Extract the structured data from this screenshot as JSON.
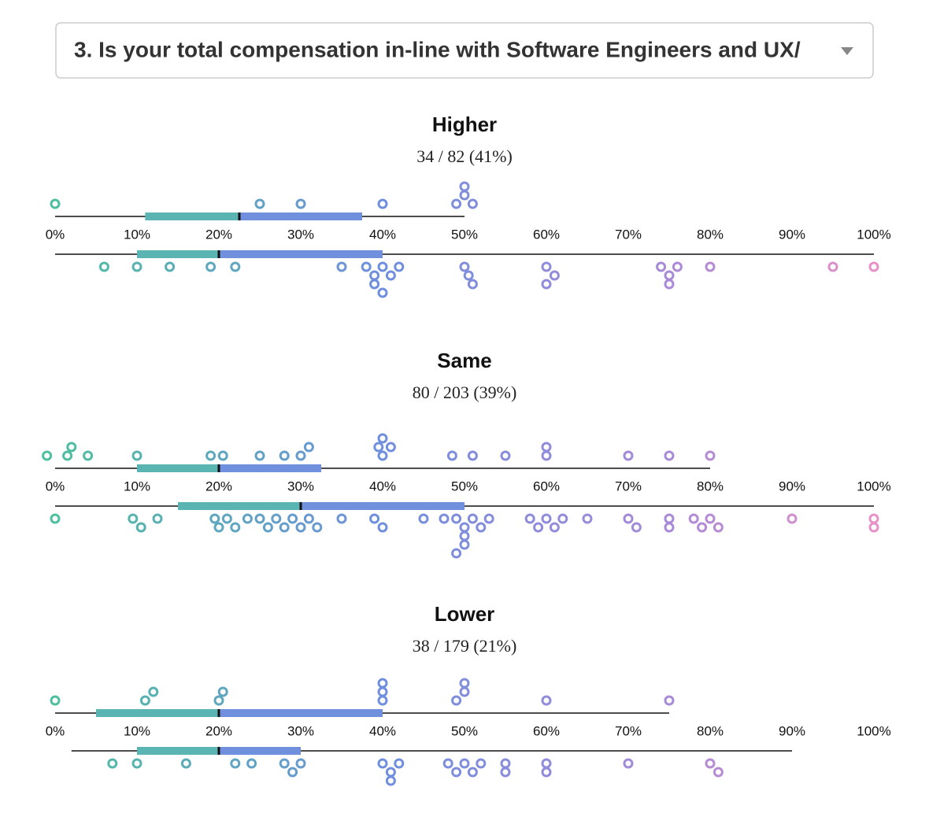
{
  "header": {
    "question": "3. Is your total compensation in-line with Software Engineers and UX/"
  },
  "chart_data": [
    {
      "type": "beeswarm",
      "title": "Higher",
      "subtitle": "34 / 82 (41%)",
      "xlim": [
        0,
        100
      ],
      "xticks": [
        {
          "value": 0,
          "label": "0%"
        },
        {
          "value": 10,
          "label": "10%"
        },
        {
          "value": 20,
          "label": "20%"
        },
        {
          "value": 30,
          "label": "30%"
        },
        {
          "value": 40,
          "label": "40%"
        },
        {
          "value": 50,
          "label": "50%"
        },
        {
          "value": 60,
          "label": "60%"
        },
        {
          "value": 70,
          "label": "70%"
        },
        {
          "value": 80,
          "label": "80%"
        },
        {
          "value": 90,
          "label": "90%"
        },
        {
          "value": 100,
          "label": "100%"
        }
      ],
      "rows": [
        {
          "whisker": [
            0,
            50
          ],
          "q1": 11,
          "median": 22.5,
          "q3": 37.5,
          "dots": [
            0,
            25,
            30,
            40,
            49,
            50,
            51,
            50
          ]
        },
        {
          "whisker": [
            0,
            100
          ],
          "q1": 10,
          "median": 20,
          "q3": 40,
          "dots": [
            6,
            10,
            14,
            19,
            22,
            35,
            38,
            39,
            40,
            41,
            42,
            39,
            40,
            50,
            50.5,
            51,
            60,
            61,
            60,
            74,
            75,
            76,
            75,
            80,
            95,
            100
          ]
        }
      ]
    },
    {
      "type": "beeswarm",
      "title": "Same",
      "subtitle": "80 / 203 (39%)",
      "xlim": [
        0,
        100
      ],
      "xticks": [
        {
          "value": 0,
          "label": "0%"
        },
        {
          "value": 10,
          "label": "10%"
        },
        {
          "value": 20,
          "label": "20%"
        },
        {
          "value": 30,
          "label": "30%"
        },
        {
          "value": 40,
          "label": "40%"
        },
        {
          "value": 50,
          "label": "50%"
        },
        {
          "value": 60,
          "label": "60%"
        },
        {
          "value": 70,
          "label": "70%"
        },
        {
          "value": 80,
          "label": "80%"
        },
        {
          "value": 90,
          "label": "90%"
        },
        {
          "value": 100,
          "label": "100%"
        }
      ],
      "rows": [
        {
          "whisker": [
            0,
            80
          ],
          "q1": 10,
          "median": 20,
          "q3": 32.5,
          "dots": [
            -1,
            1.5,
            2,
            4,
            10,
            19,
            20.5,
            25,
            28,
            30,
            31,
            40,
            39.5,
            41,
            40,
            48.5,
            51,
            55,
            60,
            60,
            70,
            75,
            80
          ]
        },
        {
          "whisker": [
            0,
            100
          ],
          "q1": 15,
          "median": 30,
          "q3": 50,
          "dots": [
            0,
            9.5,
            10.5,
            12.5,
            19.5,
            20,
            21,
            22,
            23.5,
            25,
            26,
            27,
            28,
            29,
            30,
            31,
            32,
            35,
            39,
            40,
            45,
            47.5,
            49,
            50,
            51,
            52,
            53,
            50,
            50,
            49,
            58,
            59,
            60,
            61,
            62,
            65,
            70,
            71,
            75,
            75,
            78,
            79,
            80,
            81,
            90,
            100,
            100
          ]
        }
      ]
    },
    {
      "type": "beeswarm",
      "title": "Lower",
      "subtitle": "38 / 179 (21%)",
      "xlim": [
        0,
        100
      ],
      "xticks": [
        {
          "value": 0,
          "label": "0%"
        },
        {
          "value": 10,
          "label": "10%"
        },
        {
          "value": 20,
          "label": "20%"
        },
        {
          "value": 30,
          "label": "30%"
        },
        {
          "value": 40,
          "label": "40%"
        },
        {
          "value": 50,
          "label": "50%"
        },
        {
          "value": 60,
          "label": "60%"
        },
        {
          "value": 70,
          "label": "70%"
        },
        {
          "value": 80,
          "label": "80%"
        },
        {
          "value": 90,
          "label": "90%"
        },
        {
          "value": 100,
          "label": "100%"
        }
      ],
      "rows": [
        {
          "whisker": [
            0,
            75
          ],
          "q1": 5,
          "median": 20,
          "q3": 40,
          "dots": [
            0,
            11,
            12,
            20,
            20.5,
            40,
            40,
            40,
            49,
            50,
            50,
            60,
            75
          ]
        },
        {
          "whisker": [
            2,
            90
          ],
          "q1": 10,
          "median": 20,
          "q3": 30,
          "dots": [
            7,
            10,
            16,
            22,
            24,
            28,
            29,
            30,
            40,
            41,
            42,
            41,
            48,
            49,
            50,
            51,
            52,
            55,
            55,
            60,
            60,
            70,
            80,
            81
          ]
        }
      ]
    }
  ],
  "box_colors": [
    "#5ab5b2",
    "#7090dd"
  ],
  "color_scale": [
    {
      "value": 0,
      "color": "#4dbf9f"
    },
    {
      "value": 40,
      "color": "#6f8fde"
    },
    {
      "value": 75,
      "color": "#a98ad8"
    },
    {
      "value": 100,
      "color": "#e891c8"
    }
  ]
}
